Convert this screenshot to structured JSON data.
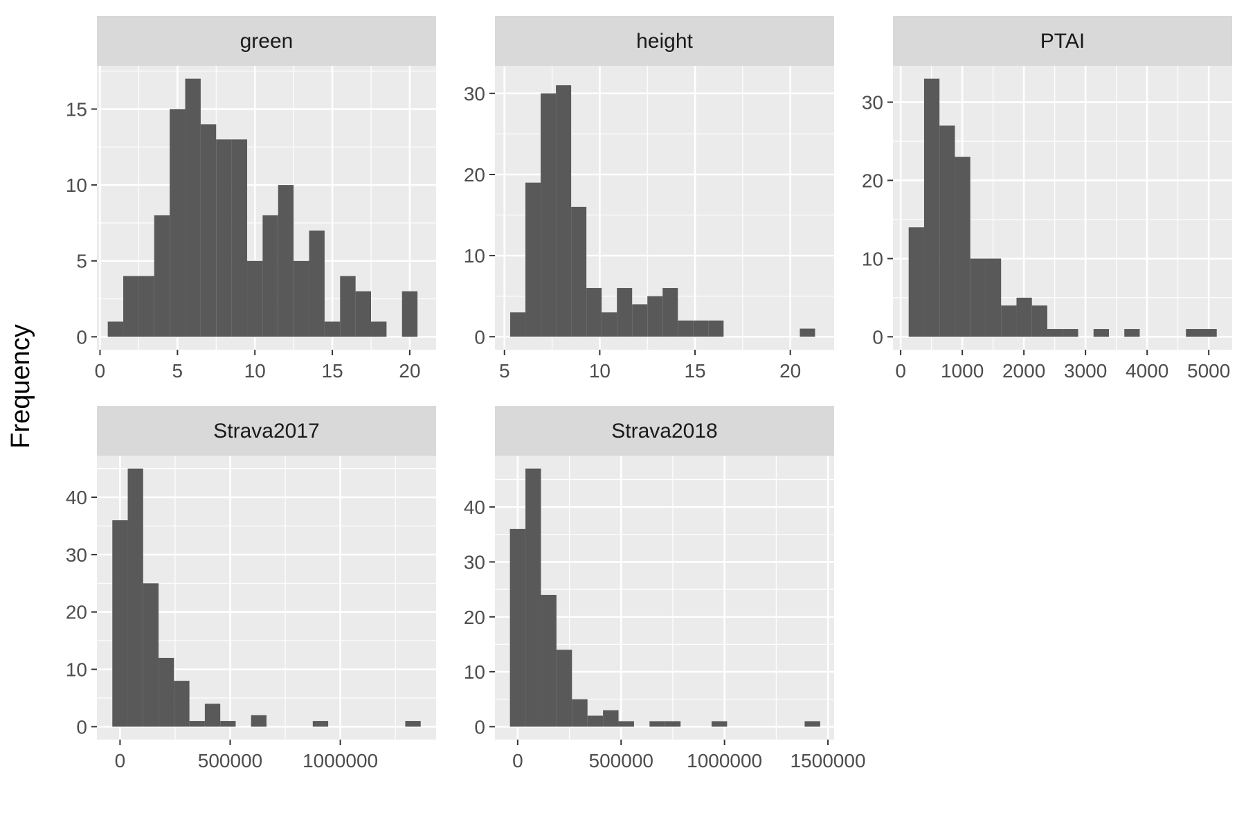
{
  "figure": {
    "y_axis_label": "Frequency"
  },
  "chart_data": [
    {
      "type": "bar",
      "facet": "green",
      "bins": [
        {
          "x0": 0.5,
          "x1": 1.5,
          "count": 1
        },
        {
          "x0": 1.5,
          "x1": 2.5,
          "count": 4
        },
        {
          "x0": 2.5,
          "x1": 3.5,
          "count": 4
        },
        {
          "x0": 3.5,
          "x1": 4.5,
          "count": 8
        },
        {
          "x0": 4.5,
          "x1": 5.5,
          "count": 15
        },
        {
          "x0": 5.5,
          "x1": 6.5,
          "count": 17
        },
        {
          "x0": 6.5,
          "x1": 7.5,
          "count": 14
        },
        {
          "x0": 7.5,
          "x1": 8.5,
          "count": 13
        },
        {
          "x0": 8.5,
          "x1": 9.5,
          "count": 13
        },
        {
          "x0": 9.5,
          "x1": 10.5,
          "count": 5
        },
        {
          "x0": 10.5,
          "x1": 11.5,
          "count": 8
        },
        {
          "x0": 11.5,
          "x1": 12.5,
          "count": 10
        },
        {
          "x0": 12.5,
          "x1": 13.5,
          "count": 5
        },
        {
          "x0": 13.5,
          "x1": 14.5,
          "count": 7
        },
        {
          "x0": 14.5,
          "x1": 15.5,
          "count": 1
        },
        {
          "x0": 15.5,
          "x1": 16.5,
          "count": 4
        },
        {
          "x0": 16.5,
          "x1": 17.5,
          "count": 3
        },
        {
          "x0": 17.5,
          "x1": 18.5,
          "count": 1
        },
        {
          "x0": 18.5,
          "x1": 19.5,
          "count": 0
        },
        {
          "x0": 19.5,
          "x1": 20.5,
          "count": 3
        }
      ],
      "xlim": [
        -0.2,
        21.7
      ],
      "ylim": [
        -0.85,
        17.85
      ],
      "x_ticks": [
        0,
        5,
        10,
        15,
        20
      ],
      "x_tick_labels": [
        "0",
        "5",
        "10",
        "15",
        "20"
      ],
      "y_ticks": [
        0,
        5,
        10,
        15
      ],
      "y_tick_labels": [
        "0",
        "5",
        "10",
        "15"
      ]
    },
    {
      "type": "bar",
      "facet": "height",
      "bins": [
        {
          "x0": 5.3,
          "x1": 6.1,
          "count": 3
        },
        {
          "x0": 6.1,
          "x1": 6.9,
          "count": 19
        },
        {
          "x0": 6.9,
          "x1": 7.7,
          "count": 30
        },
        {
          "x0": 7.7,
          "x1": 8.5,
          "count": 31
        },
        {
          "x0": 8.5,
          "x1": 9.3,
          "count": 16
        },
        {
          "x0": 9.3,
          "x1": 10.1,
          "count": 6
        },
        {
          "x0": 10.1,
          "x1": 10.9,
          "count": 3
        },
        {
          "x0": 10.9,
          "x1": 11.7,
          "count": 6
        },
        {
          "x0": 11.7,
          "x1": 12.5,
          "count": 4
        },
        {
          "x0": 12.5,
          "x1": 13.3,
          "count": 5
        },
        {
          "x0": 13.3,
          "x1": 14.1,
          "count": 6
        },
        {
          "x0": 14.1,
          "x1": 14.9,
          "count": 2
        },
        {
          "x0": 14.9,
          "x1": 15.7,
          "count": 2
        },
        {
          "x0": 15.7,
          "x1": 16.5,
          "count": 2
        },
        {
          "x0": 20.5,
          "x1": 21.3,
          "count": 1
        }
      ],
      "xlim": [
        4.5,
        22.3
      ],
      "ylim": [
        -1.6,
        33.4
      ],
      "x_ticks": [
        5,
        10,
        15,
        20
      ],
      "x_tick_labels": [
        "5",
        "10",
        "15",
        "20"
      ],
      "y_ticks": [
        0,
        10,
        20,
        30
      ],
      "y_tick_labels": [
        "0",
        "10",
        "20",
        "30"
      ]
    },
    {
      "type": "bar",
      "facet": "PTAI",
      "bins": [
        {
          "x0": 130,
          "x1": 380,
          "count": 14
        },
        {
          "x0": 380,
          "x1": 630,
          "count": 33
        },
        {
          "x0": 630,
          "x1": 880,
          "count": 27
        },
        {
          "x0": 880,
          "x1": 1130,
          "count": 23
        },
        {
          "x0": 1130,
          "x1": 1380,
          "count": 10
        },
        {
          "x0": 1380,
          "x1": 1630,
          "count": 10
        },
        {
          "x0": 1630,
          "x1": 1880,
          "count": 4
        },
        {
          "x0": 1880,
          "x1": 2130,
          "count": 5
        },
        {
          "x0": 2130,
          "x1": 2380,
          "count": 4
        },
        {
          "x0": 2380,
          "x1": 2630,
          "count": 1
        },
        {
          "x0": 2630,
          "x1": 2880,
          "count": 1
        },
        {
          "x0": 3130,
          "x1": 3380,
          "count": 1
        },
        {
          "x0": 3630,
          "x1": 3880,
          "count": 1
        },
        {
          "x0": 4630,
          "x1": 4880,
          "count": 1
        },
        {
          "x0": 4880,
          "x1": 5130,
          "count": 1
        }
      ],
      "xlim": [
        -125,
        5380
      ],
      "ylim": [
        -1.65,
        34.65
      ],
      "x_ticks": [
        0,
        1000,
        2000,
        3000,
        4000,
        5000
      ],
      "x_tick_labels": [
        "0",
        "1000",
        "2000",
        "3000",
        "4000",
        "5000"
      ],
      "y_ticks": [
        0,
        10,
        20,
        30
      ],
      "y_tick_labels": [
        "0",
        "10",
        "20",
        "30"
      ]
    },
    {
      "type": "bar",
      "facet": "Strava2017",
      "bins": [
        {
          "x0": -35000,
          "x1": 35000,
          "count": 36
        },
        {
          "x0": 35000,
          "x1": 105000,
          "count": 45
        },
        {
          "x0": 105000,
          "x1": 175000,
          "count": 25
        },
        {
          "x0": 175000,
          "x1": 245000,
          "count": 12
        },
        {
          "x0": 245000,
          "x1": 315000,
          "count": 8
        },
        {
          "x0": 315000,
          "x1": 385000,
          "count": 1
        },
        {
          "x0": 385000,
          "x1": 455000,
          "count": 4
        },
        {
          "x0": 455000,
          "x1": 525000,
          "count": 1
        },
        {
          "x0": 595000,
          "x1": 665000,
          "count": 2
        },
        {
          "x0": 875000,
          "x1": 945000,
          "count": 1
        },
        {
          "x0": 1295000,
          "x1": 1365000,
          "count": 1
        }
      ],
      "xlim": [
        -105000,
        1435000
      ],
      "ylim": [
        -2.25,
        47.25
      ],
      "x_ticks": [
        0,
        500000,
        1000000
      ],
      "x_tick_labels": [
        "0",
        "500000",
        "1000000"
      ],
      "y_ticks": [
        0,
        10,
        20,
        30,
        40
      ],
      "y_tick_labels": [
        "0",
        "10",
        "20",
        "30",
        "40"
      ]
    },
    {
      "type": "bar",
      "facet": "Strava2018",
      "bins": [
        {
          "x0": -37500,
          "x1": 37500,
          "count": 36
        },
        {
          "x0": 37500,
          "x1": 112500,
          "count": 47
        },
        {
          "x0": 112500,
          "x1": 187500,
          "count": 24
        },
        {
          "x0": 187500,
          "x1": 262500,
          "count": 14
        },
        {
          "x0": 262500,
          "x1": 337500,
          "count": 5
        },
        {
          "x0": 337500,
          "x1": 412500,
          "count": 2
        },
        {
          "x0": 412500,
          "x1": 487500,
          "count": 3
        },
        {
          "x0": 487500,
          "x1": 562500,
          "count": 1
        },
        {
          "x0": 637500,
          "x1": 712500,
          "count": 1
        },
        {
          "x0": 712500,
          "x1": 787500,
          "count": 1
        },
        {
          "x0": 937500,
          "x1": 1012500,
          "count": 1
        },
        {
          "x0": 1387500,
          "x1": 1462500,
          "count": 1
        }
      ],
      "xlim": [
        -110000,
        1530000
      ],
      "ylim": [
        -2.35,
        49.35
      ],
      "x_ticks": [
        0,
        500000,
        1000000,
        1500000
      ],
      "x_tick_labels": [
        "0",
        "500000",
        "1000000",
        "1500000"
      ],
      "y_ticks": [
        0,
        10,
        20,
        30,
        40
      ],
      "y_tick_labels": [
        "0",
        "10",
        "20",
        "30",
        "40"
      ]
    }
  ]
}
